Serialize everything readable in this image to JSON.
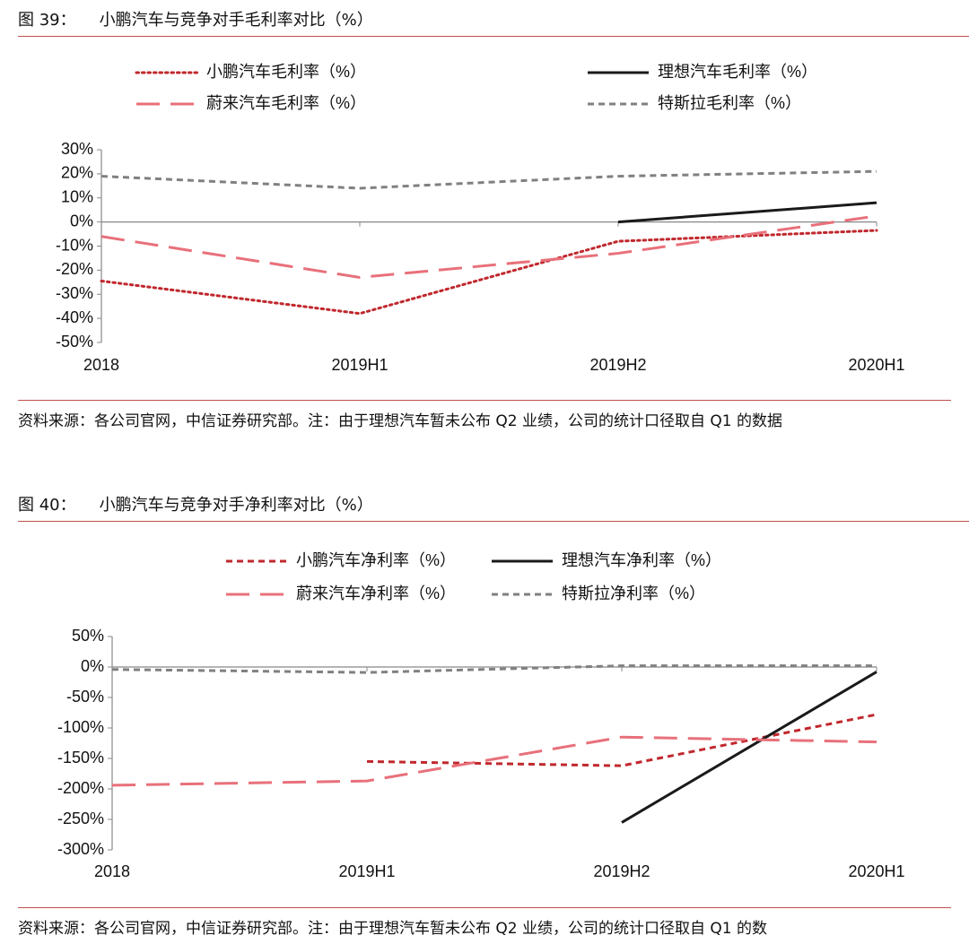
{
  "chart_data": [
    {
      "type": "line",
      "figure_label": "图 39：",
      "title": "小鹏汽车与竞争对手毛利率对比（%）",
      "categories": [
        "2018",
        "2019H1",
        "2019H2",
        "2020H1"
      ],
      "series": [
        {
          "name": "小鹏汽车毛利率（%）",
          "color": "#c0282d",
          "style": "dotted",
          "values": [
            -24.5,
            -38,
            -8,
            -3.5
          ]
        },
        {
          "name": "理想汽车毛利率（%）",
          "color": "#1a1a1a",
          "style": "solid",
          "values": [
            null,
            null,
            0,
            8
          ]
        },
        {
          "name": "蔚来汽车毛利率（%）",
          "color": "#e8707a",
          "style": "long-dashed",
          "values": [
            -6,
            -23,
            -13,
            2.5
          ]
        },
        {
          "name": "特斯拉毛利率（%）",
          "color": "#808080",
          "style": "dashed",
          "values": [
            19,
            14,
            19,
            21
          ]
        }
      ],
      "ylim": [
        -50,
        30
      ],
      "yticks": [
        {
          "value": 30,
          "label": "30%"
        },
        {
          "value": 20,
          "label": "20%"
        },
        {
          "value": 10,
          "label": "10%"
        },
        {
          "value": 0,
          "label": "0%"
        },
        {
          "value": -10,
          "label": "-10%"
        },
        {
          "value": -20,
          "label": "-20%"
        },
        {
          "value": -30,
          "label": "-30%"
        },
        {
          "value": -40,
          "label": "-40%"
        },
        {
          "value": -50,
          "label": "-50%"
        }
      ],
      "source": "资料来源：各公司官网，中信证券研究部。注：由于理想汽车暂未公布 Q2 业绩，公司的统计口径取自 Q1 的数据"
    },
    {
      "type": "line",
      "figure_label": "图 40：",
      "title": "小鹏汽车与竞争对手净利率对比（%）",
      "categories": [
        "2018",
        "2019H1",
        "2019H2",
        "2020H1"
      ],
      "series": [
        {
          "name": "小鹏汽车净利率（%）",
          "color": "#c0282d",
          "style": "dashed",
          "values": [
            null,
            -155,
            -162,
            -78
          ]
        },
        {
          "name": "理想汽车净利率（%）",
          "color": "#1a1a1a",
          "style": "solid",
          "values": [
            null,
            null,
            -255,
            -8
          ]
        },
        {
          "name": "蔚来汽车净利率（%）",
          "color": "#e8707a",
          "style": "long-dashed",
          "values": [
            -194,
            -187,
            -115,
            -123
          ]
        },
        {
          "name": "特斯拉净利率（%）",
          "color": "#808080",
          "style": "dashed",
          "values": [
            -4,
            -9,
            2,
            2
          ]
        }
      ],
      "ylim": [
        -300,
        50
      ],
      "yticks": [
        {
          "value": 50,
          "label": "50%"
        },
        {
          "value": 0,
          "label": "0%"
        },
        {
          "value": -50,
          "label": "-50%"
        },
        {
          "value": -100,
          "label": "-100%"
        },
        {
          "value": -150,
          "label": "-150%"
        },
        {
          "value": -200,
          "label": "-200%"
        },
        {
          "value": -250,
          "label": "-250%"
        },
        {
          "value": -300,
          "label": "-300%"
        }
      ],
      "source": "资料来源：各公司官网，中信证券研究部。注：由于理想汽车暂未公布 Q2 业绩，公司的统计口径取自 Q1 的数"
    }
  ]
}
